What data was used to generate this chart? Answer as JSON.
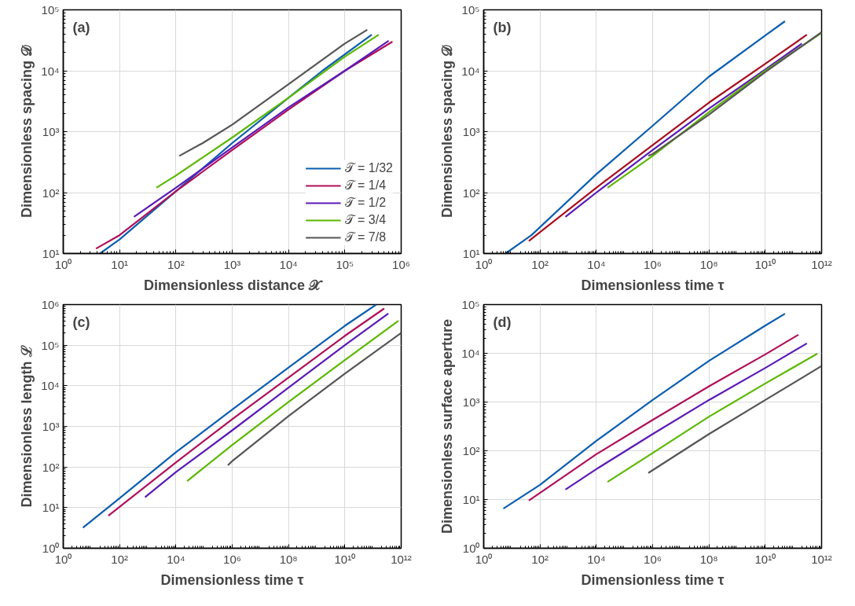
{
  "chart_data": [
    {
      "type": "line",
      "log": "xy",
      "grid": true,
      "legend": "bottom right",
      "annotations": [
        "(a)"
      ],
      "xlabel": "Dimensionless distance 𝒳",
      "ylabel": "Dimensionless spacing 𝒟",
      "xlim": [
        1,
        1000000
      ],
      "ylim": [
        10,
        100000
      ],
      "xticks": [
        {
          "value": 1,
          "label": "10⁰"
        },
        {
          "value": 10,
          "label": "10¹"
        },
        {
          "value": 100,
          "label": "10²"
        },
        {
          "value": 1000,
          "label": "10³"
        },
        {
          "value": 10000,
          "label": "10⁴"
        },
        {
          "value": 100000,
          "label": "10⁵"
        },
        {
          "value": 1000000,
          "label": "10⁶"
        }
      ],
      "yticks": [
        {
          "value": 10,
          "label": "10¹"
        },
        {
          "value": 100,
          "label": "10²"
        },
        {
          "value": 1000,
          "label": "10³"
        },
        {
          "value": 10000,
          "label": "10⁴"
        },
        {
          "value": 100000,
          "label": "10⁵"
        }
      ],
      "series": [
        {
          "name": "𝒯 = 1/32",
          "color": "#0b5eb0",
          "x": [
            4.5,
            10,
            100,
            1000,
            10000,
            40000,
            300000
          ],
          "values": [
            10,
            17,
            105,
            650,
            3600,
            10000,
            39000
          ]
        },
        {
          "name": "𝒯 = 1/4",
          "color": "#b0105a",
          "x": [
            3.8,
            10,
            100,
            1000,
            10000,
            100000,
            700000
          ],
          "values": [
            12,
            20,
            105,
            500,
            2300,
            10000,
            30000
          ]
        },
        {
          "name": "𝒯 = 1/2",
          "color": "#5a1ab8",
          "x": [
            18,
            100,
            1000,
            10000,
            100000,
            600000
          ],
          "values": [
            40,
            120,
            550,
            2500,
            10000,
            31000
          ]
        },
        {
          "name": "𝒯 = 3/4",
          "color": "#5cb800",
          "x": [
            45,
            100,
            1000,
            10000,
            100000,
            400000
          ],
          "values": [
            120,
            190,
            800,
            3600,
            17000,
            39000
          ]
        },
        {
          "name": "𝒯 = 7/8",
          "color": "#555555",
          "x": [
            115,
            300,
            1000,
            10000,
            100000,
            250000
          ],
          "values": [
            400,
            650,
            1300,
            6000,
            28000,
            47000
          ]
        }
      ]
    },
    {
      "type": "line",
      "log": "xy",
      "grid": true,
      "annotations": [
        "(b)"
      ],
      "xlabel": "Dimensionless time τ",
      "ylabel": "Dimensionless spacing 𝒟",
      "xlim": [
        1,
        1000000000000
      ],
      "ylim": [
        10,
        100000
      ],
      "xticks": [
        {
          "value": 1,
          "label": "10⁰"
        },
        {
          "value": 100,
          "label": "10²"
        },
        {
          "value": 10000,
          "label": "10⁴"
        },
        {
          "value": 1000000,
          "label": "10⁶"
        },
        {
          "value": 100000000,
          "label": "10⁸"
        },
        {
          "value": 10000000000,
          "label": "10¹⁰"
        },
        {
          "value": 1000000000000,
          "label": "10¹²"
        }
      ],
      "yticks": [
        {
          "value": 10,
          "label": "10¹"
        },
        {
          "value": 100,
          "label": "10²"
        },
        {
          "value": 1000,
          "label": "10³"
        },
        {
          "value": 10000,
          "label": "10⁴"
        },
        {
          "value": 100000,
          "label": "10⁵"
        }
      ],
      "series": [
        {
          "color": "#0b5eb0",
          "x": [
            6,
            50,
            10000,
            1000000,
            100000000,
            10000000000,
            50000000000
          ],
          "values": [
            10,
            20,
            200,
            1250,
            8000,
            38000,
            65000
          ]
        },
        {
          "color": "#a80e1e",
          "x": [
            40,
            10000,
            1000000,
            100000000,
            10000000000,
            300000000000
          ],
          "values": [
            16,
            120,
            600,
            3000,
            13000,
            39000
          ]
        },
        {
          "color": "#5a1ab8",
          "x": [
            800,
            10000,
            1000000,
            100000000,
            10000000000,
            200000000000
          ],
          "values": [
            40,
            100,
            500,
            2400,
            10500,
            28000
          ]
        },
        {
          "color": "#5cb800",
          "x": [
            25000,
            1000000,
            100000000,
            10000000000,
            1000000000000
          ],
          "values": [
            120,
            400,
            2100,
            10000,
            42000
          ]
        },
        {
          "color": "#555555",
          "x": [
            700000,
            1000000,
            100000000,
            10000000000,
            1000000000000
          ],
          "values": [
            400,
            430,
            1900,
            9500,
            43000
          ]
        }
      ]
    },
    {
      "type": "line",
      "log": "xy",
      "grid": true,
      "annotations": [
        "(c)"
      ],
      "xlabel": "Dimensionless time τ",
      "ylabel": "Dimensionless length ℒ",
      "xlim": [
        1,
        1000000000000
      ],
      "ylim": [
        1,
        1000000
      ],
      "xticks": [
        {
          "value": 1,
          "label": "10⁰"
        },
        {
          "value": 100,
          "label": "10²"
        },
        {
          "value": 10000,
          "label": "10⁴"
        },
        {
          "value": 1000000,
          "label": "10⁶"
        },
        {
          "value": 100000000,
          "label": "10⁸"
        },
        {
          "value": 10000000000,
          "label": "10¹⁰"
        },
        {
          "value": 1000000000000,
          "label": "10¹²"
        }
      ],
      "yticks": [
        {
          "value": 1,
          "label": "10⁰"
        },
        {
          "value": 10,
          "label": "10¹"
        },
        {
          "value": 100,
          "label": "10²"
        },
        {
          "value": 1000,
          "label": "10³"
        },
        {
          "value": 10000,
          "label": "10⁴"
        },
        {
          "value": 100000,
          "label": "10⁵"
        },
        {
          "value": 1000000,
          "label": "10⁶"
        }
      ],
      "series": [
        {
          "color": "#0b5eb0",
          "x": [
            5,
            100,
            10000,
            1000000,
            100000000,
            10000000000,
            130000000000
          ],
          "values": [
            3.2,
            17,
            230,
            2600,
            28000,
            300000,
            1000000
          ]
        },
        {
          "color": "#b0105a",
          "x": [
            40,
            10000,
            1000000,
            100000000,
            10000000000,
            250000000000
          ],
          "values": [
            6.3,
            130,
            1500,
            16000,
            170000,
            800000
          ]
        },
        {
          "color": "#5a1ab8",
          "x": [
            800,
            10000,
            1000000,
            100000000,
            10000000000,
            350000000000
          ],
          "values": [
            18,
            75,
            800,
            9000,
            100000,
            600000
          ]
        },
        {
          "color": "#5cb800",
          "x": [
            25000,
            1000000,
            100000000,
            10000000000,
            800000000000
          ],
          "values": [
            45,
            350,
            4000,
            43000,
            400000
          ]
        },
        {
          "color": "#555555",
          "x": [
            700000,
            1000000,
            100000000,
            10000000000,
            1000000000000
          ],
          "values": [
            110,
            140,
            1800,
            20000,
            200000
          ]
        }
      ]
    },
    {
      "type": "line",
      "log": "xy",
      "grid": true,
      "annotations": [
        "(d)"
      ],
      "xlabel": "Dimensionless time τ",
      "ylabel": "Dimensionless surface aperture",
      "xlim": [
        1,
        1000000000000
      ],
      "ylim": [
        1,
        100000
      ],
      "xticks": [
        {
          "value": 1,
          "label": "10⁰"
        },
        {
          "value": 100,
          "label": "10²"
        },
        {
          "value": 10000,
          "label": "10⁴"
        },
        {
          "value": 1000000,
          "label": "10⁶"
        },
        {
          "value": 100000000,
          "label": "10⁸"
        },
        {
          "value": 10000000000,
          "label": "10¹⁰"
        },
        {
          "value": 1000000000000,
          "label": "10¹²"
        }
      ],
      "yticks": [
        {
          "value": 1,
          "label": "10⁰"
        },
        {
          "value": 10,
          "label": "10¹"
        },
        {
          "value": 100,
          "label": "10²"
        },
        {
          "value": 1000,
          "label": "10³"
        },
        {
          "value": 10000,
          "label": "10⁴"
        },
        {
          "value": 100000,
          "label": "10⁵"
        }
      ],
      "series": [
        {
          "color": "#0b5eb0",
          "x": [
            5,
            100,
            10000,
            1000000,
            100000000,
            10000000000,
            50000000000
          ],
          "values": [
            6.5,
            20,
            160,
            1100,
            7000,
            37000,
            65000
          ]
        },
        {
          "color": "#b0105a",
          "x": [
            40,
            10000,
            1000000,
            100000000,
            10000000000,
            150000000000
          ],
          "values": [
            9.5,
            85,
            430,
            2100,
            9500,
            24000
          ]
        },
        {
          "color": "#5a1ab8",
          "x": [
            800,
            10000,
            1000000,
            100000000,
            10000000000,
            300000000000
          ],
          "values": [
            16,
            42,
            220,
            1100,
            5000,
            16000
          ]
        },
        {
          "color": "#5cb800",
          "x": [
            25000,
            1000000,
            100000000,
            10000000000,
            700000000000
          ],
          "values": [
            23,
            90,
            500,
            2400,
            9800
          ]
        },
        {
          "color": "#555555",
          "x": [
            700000,
            100000000,
            10000000000,
            1000000000000
          ],
          "values": [
            35,
            220,
            1100,
            5500
          ]
        }
      ]
    }
  ]
}
